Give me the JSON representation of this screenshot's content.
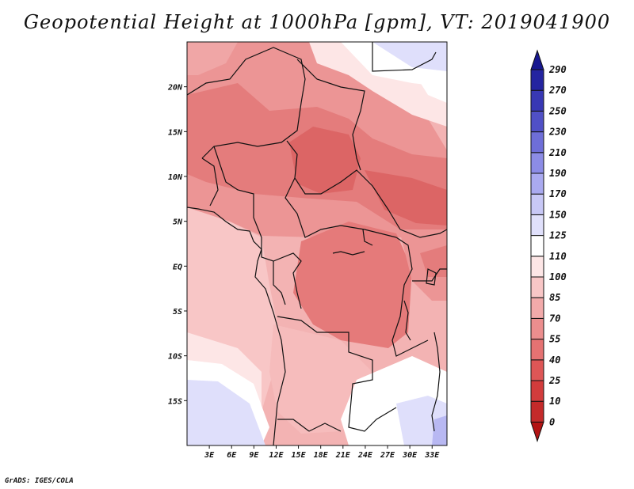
{
  "title": "Geopotential Height at 1000hPa [gpm], VT: 2019041900",
  "footer": "GrADS: IGES/COLA",
  "map": {
    "region": "Central Africa",
    "lat_range": [
      -20,
      25
    ],
    "lon_range": [
      0,
      35
    ],
    "lat_ticks": [
      {
        "value": 20,
        "label": "20N"
      },
      {
        "value": 15,
        "label": "15N"
      },
      {
        "value": 10,
        "label": "10N"
      },
      {
        "value": 5,
        "label": "5N"
      },
      {
        "value": 0,
        "label": "EQ"
      },
      {
        "value": -5,
        "label": "5S"
      },
      {
        "value": -10,
        "label": "10S"
      },
      {
        "value": -15,
        "label": "15S"
      }
    ],
    "lon_ticks": [
      {
        "value": 3,
        "label": "3E"
      },
      {
        "value": 6,
        "label": "6E"
      },
      {
        "value": 9,
        "label": "9E"
      },
      {
        "value": 12,
        "label": "12E"
      },
      {
        "value": 15,
        "label": "15E"
      },
      {
        "value": 18,
        "label": "18E"
      },
      {
        "value": 21,
        "label": "21E"
      },
      {
        "value": 24,
        "label": "24E"
      },
      {
        "value": 27,
        "label": "27E"
      },
      {
        "value": 30,
        "label": "30E"
      },
      {
        "value": 33,
        "label": "33E"
      }
    ]
  },
  "colorbar": {
    "levels": [
      "0",
      "10",
      "25",
      "40",
      "55",
      "70",
      "85",
      "100",
      "110",
      "125",
      "150",
      "170",
      "190",
      "210",
      "230",
      "250",
      "270",
      "290"
    ],
    "colors": [
      "#b31414",
      "#c42a2a",
      "#d23c3c",
      "#de5656",
      "#e57272",
      "#ec8e8e",
      "#f2aaaa",
      "#f8c6c6",
      "#fde6e6",
      "#ffffff",
      "#e0e0fb",
      "#c8c8f6",
      "#aaaaf0",
      "#8c8ce6",
      "#6e6ed8",
      "#5050c6",
      "#3838b4",
      "#2424a0",
      "#181890"
    ]
  }
}
